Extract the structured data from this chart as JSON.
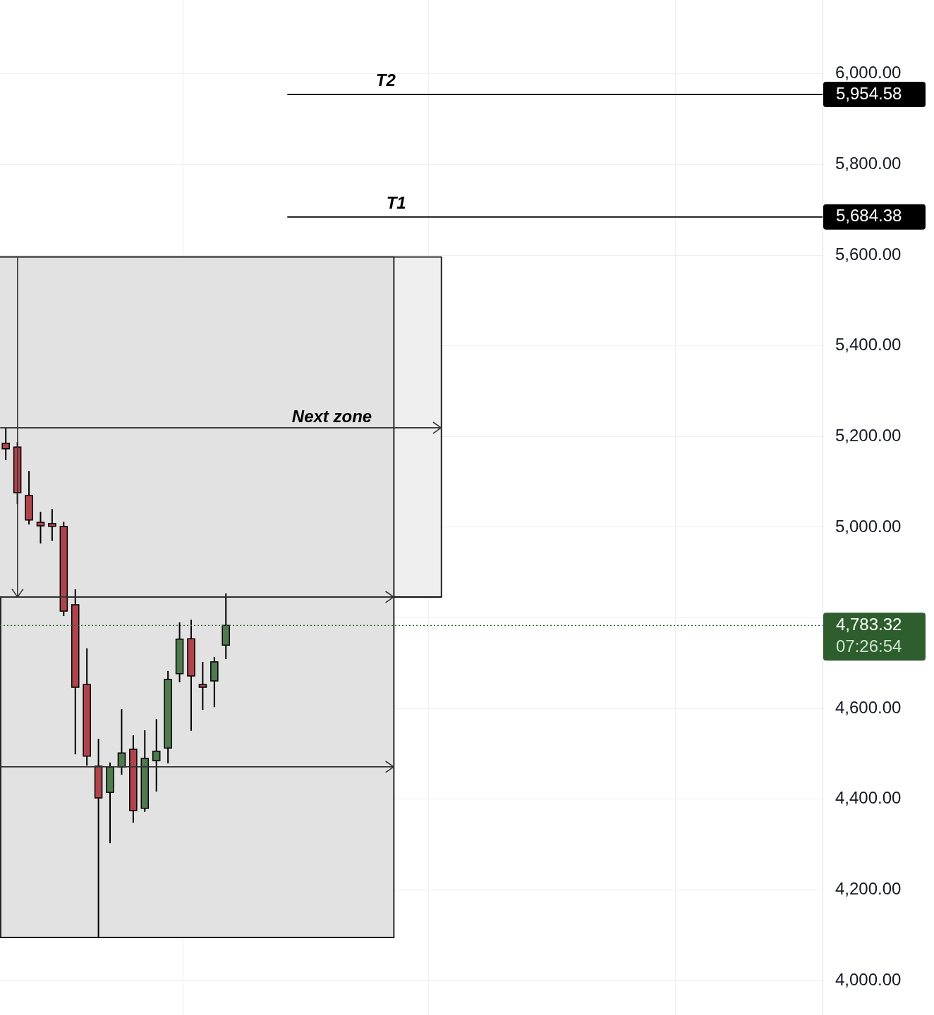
{
  "chart_data": {
    "type": "candlestick",
    "categories": [
      null,
      null,
      null,
      null,
      null,
      null,
      null,
      null,
      null,
      null,
      null,
      null,
      null,
      null,
      null,
      null,
      null,
      null,
      null,
      null,
      null,
      null,
      null,
      null,
      null,
      null,
      null,
      null,
      null,
      null,
      null,
      null,
      null,
      null,
      null,
      null,
      null,
      null,
      null,
      null,
      null,
      null,
      null,
      null,
      null,
      null,
      null,
      null,
      null,
      null,
      null,
      null,
      null,
      null,
      null,
      null,
      null,
      null,
      null,
      null,
      null,
      null,
      null,
      null,
      null,
      null,
      null,
      null,
      null,
      null,
      null
    ],
    "ohlc": [
      [
        5185,
        5219,
        5148,
        5173
      ],
      [
        5177,
        5188,
        5051,
        5076
      ],
      [
        5070,
        5124,
        5006,
        5016
      ],
      [
        5011,
        5034,
        4964,
        5003
      ],
      [
        5008,
        5040,
        4970,
        5002
      ],
      [
        5002,
        5012,
        4804,
        4815
      ],
      [
        4829,
        4863,
        4499,
        4647
      ],
      [
        4653,
        4733,
        4474,
        4495
      ],
      [
        4473,
        4533,
        4095,
        4403
      ],
      [
        4415,
        4481,
        4303,
        4471
      ],
      [
        4471,
        4599,
        4454,
        4502
      ],
      [
        4510,
        4541,
        4348,
        4375
      ],
      [
        4380,
        4552,
        4372,
        4490
      ],
      [
        4485,
        4577,
        4417,
        4506
      ],
      [
        4513,
        4683,
        4479,
        4664
      ],
      [
        4677,
        4790,
        4658,
        4753
      ],
      [
        4754,
        4796,
        4551,
        4672
      ],
      [
        4653,
        4703,
        4597,
        4647
      ],
      [
        4661,
        4714,
        4603,
        4703
      ],
      [
        4740,
        4854,
        4709,
        4783.32
      ],
      null,
      null,
      null,
      null,
      null,
      null,
      null,
      null,
      null,
      null,
      null,
      null,
      null,
      null,
      null,
      null,
      null,
      null,
      null,
      null,
      null,
      null,
      null,
      null,
      null,
      null,
      null,
      null,
      null,
      null,
      null,
      null,
      null,
      null,
      null,
      null,
      null,
      null,
      null,
      null,
      null,
      null,
      null,
      null,
      null,
      null,
      null,
      null,
      null,
      null,
      null
    ],
    "colors": [
      "#b0444c",
      "#b0444c",
      "#b0444c",
      "#b0444c",
      "#b0444c",
      "#b0444c",
      "#b0444c",
      "#b0444c",
      "#b0444c",
      "#4e7a4e",
      "#4e7a4e",
      "#b0444c",
      "#4e7a4e",
      "#4e7a4e",
      "#4e7a4e",
      "#4e7a4e",
      "#b0444c",
      "#b0444c",
      "#4e7a4e",
      "#4e7a4e",
      null,
      null,
      null,
      null,
      null,
      null,
      null,
      null,
      null,
      null,
      null,
      null,
      null,
      null,
      null,
      null,
      null,
      null,
      null,
      null,
      null,
      null,
      null,
      null,
      null,
      null,
      null,
      null,
      null,
      null,
      null,
      null,
      null,
      null,
      null,
      null,
      null,
      null,
      null,
      null,
      null,
      null,
      null,
      null,
      null,
      null,
      null,
      null,
      null,
      null,
      null
    ],
    "ylim": [
      3924,
      6163
    ],
    "yticks": [
      {
        "value": 4000,
        "label": "4,000.00"
      },
      {
        "value": 4200,
        "label": "4,200.00"
      },
      {
        "value": 4400,
        "label": "4,400.00"
      },
      {
        "value": 4600,
        "label": "4,600.00"
      },
      {
        "value": 4800,
        "label": null
      },
      {
        "value": 5000,
        "label": "5,000.00"
      },
      {
        "value": 5200,
        "label": "5,200.00"
      },
      {
        "value": 5400,
        "label": "5,400.00"
      },
      {
        "value": 5600,
        "label": "5,600.00"
      },
      {
        "value": 5800,
        "label": "5,800.00"
      },
      {
        "value": 6000,
        "label": "6,000.00"
      }
    ],
    "ref_lines": [
      {
        "axis": "y",
        "value": 5954.58,
        "label": "T2",
        "color": "#000000"
      },
      {
        "axis": "y",
        "value": 5684.38,
        "label": "T1",
        "color": "#000000"
      },
      {
        "axis": "y",
        "value": 4783.32,
        "color": "#2e5e2e",
        "line_style": "dotted"
      }
    ],
    "bands": [
      {
        "axis": "y",
        "from": 4846,
        "to": 5596,
        "color": "#efefef"
      },
      {
        "axis": "y",
        "from": 4846,
        "to": 5596,
        "color": "#e2e2e2"
      },
      {
        "axis": "y",
        "from": 4095,
        "to": 4846,
        "color": "#e2e2e2"
      }
    ],
    "annotations": [
      "Next zone",
      "5,954.58",
      "5,684.38",
      "4,783.32",
      "07:26:54"
    ],
    "grid": true,
    "tick_labels": "y"
  }
}
